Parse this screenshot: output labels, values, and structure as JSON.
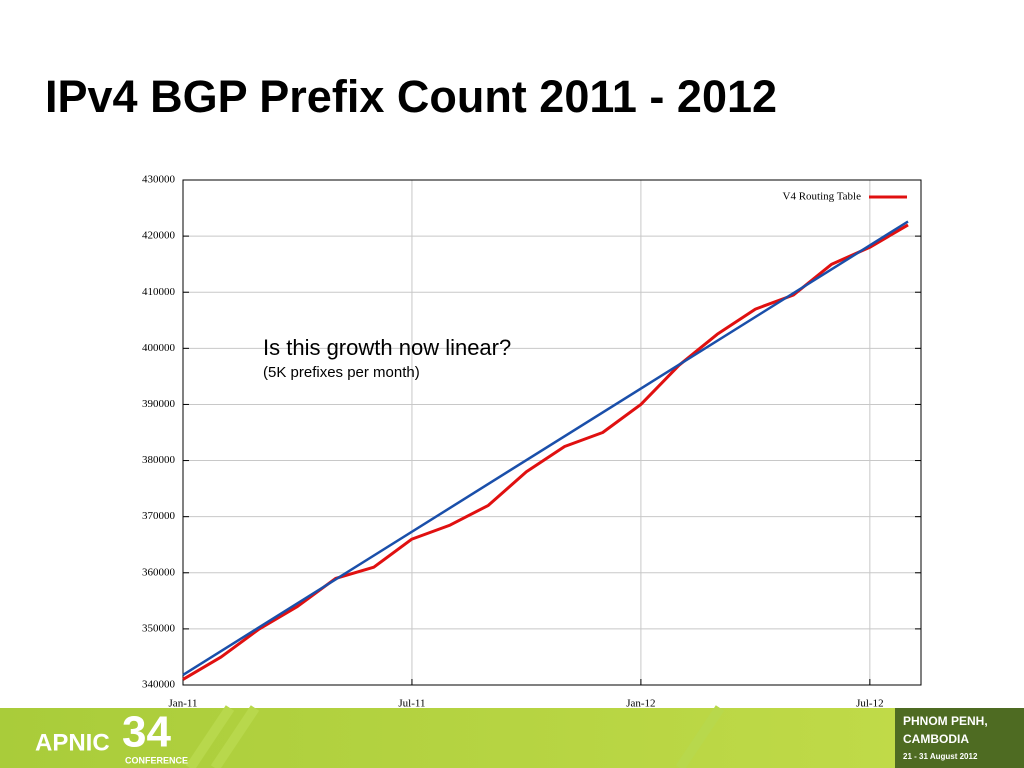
{
  "chart_data": {
    "type": "line",
    "title": "IPv4 BGP Prefix Count 2011 - 2012",
    "x": [
      "2011-01",
      "2011-02",
      "2011-03",
      "2011-04",
      "2011-05",
      "2011-06",
      "2011-07",
      "2011-08",
      "2011-09",
      "2011-10",
      "2011-11",
      "2011-12",
      "2012-01",
      "2012-02",
      "2012-03",
      "2012-04",
      "2012-05",
      "2012-06",
      "2012-07",
      "2012-08"
    ],
    "series": [
      {
        "name": "V4 Routing Table",
        "color": "#e01010",
        "values": [
          341000,
          345000,
          350000,
          354000,
          359000,
          361000,
          366000,
          368500,
          372000,
          378000,
          382500,
          385000,
          390000,
          397000,
          402500,
          407000,
          409500,
          415000,
          418000,
          422000
        ]
      }
    ],
    "trendline": {
      "color": "#1a4faa",
      "x": [
        "2011-01",
        "2012-08"
      ],
      "values": [
        341800,
        422600
      ]
    },
    "annotations": [
      {
        "text": "Is this growth now linear?"
      },
      {
        "text": "(5K prefixes per month)"
      }
    ],
    "xlim": [
      "2011-01",
      "2012-08"
    ],
    "xticks": [
      {
        "value": "2011-01",
        "label": "Jan-11"
      },
      {
        "value": "2011-07",
        "label": "Jul-11"
      },
      {
        "value": "2012-01",
        "label": "Jan-12"
      },
      {
        "value": "2012-07",
        "label": "Jul-12"
      }
    ],
    "ylim": [
      340000,
      430000
    ],
    "yticks": [
      340000,
      350000,
      360000,
      370000,
      380000,
      390000,
      400000,
      410000,
      420000,
      430000
    ],
    "grid": true,
    "legend": "top-right"
  },
  "footer": {
    "org": "APNIC",
    "number": "34",
    "event": "CONFERENCE",
    "city": "PHNOM PENH,",
    "country": "CAMBODIA",
    "dates": "21 - 31 August 2012"
  }
}
